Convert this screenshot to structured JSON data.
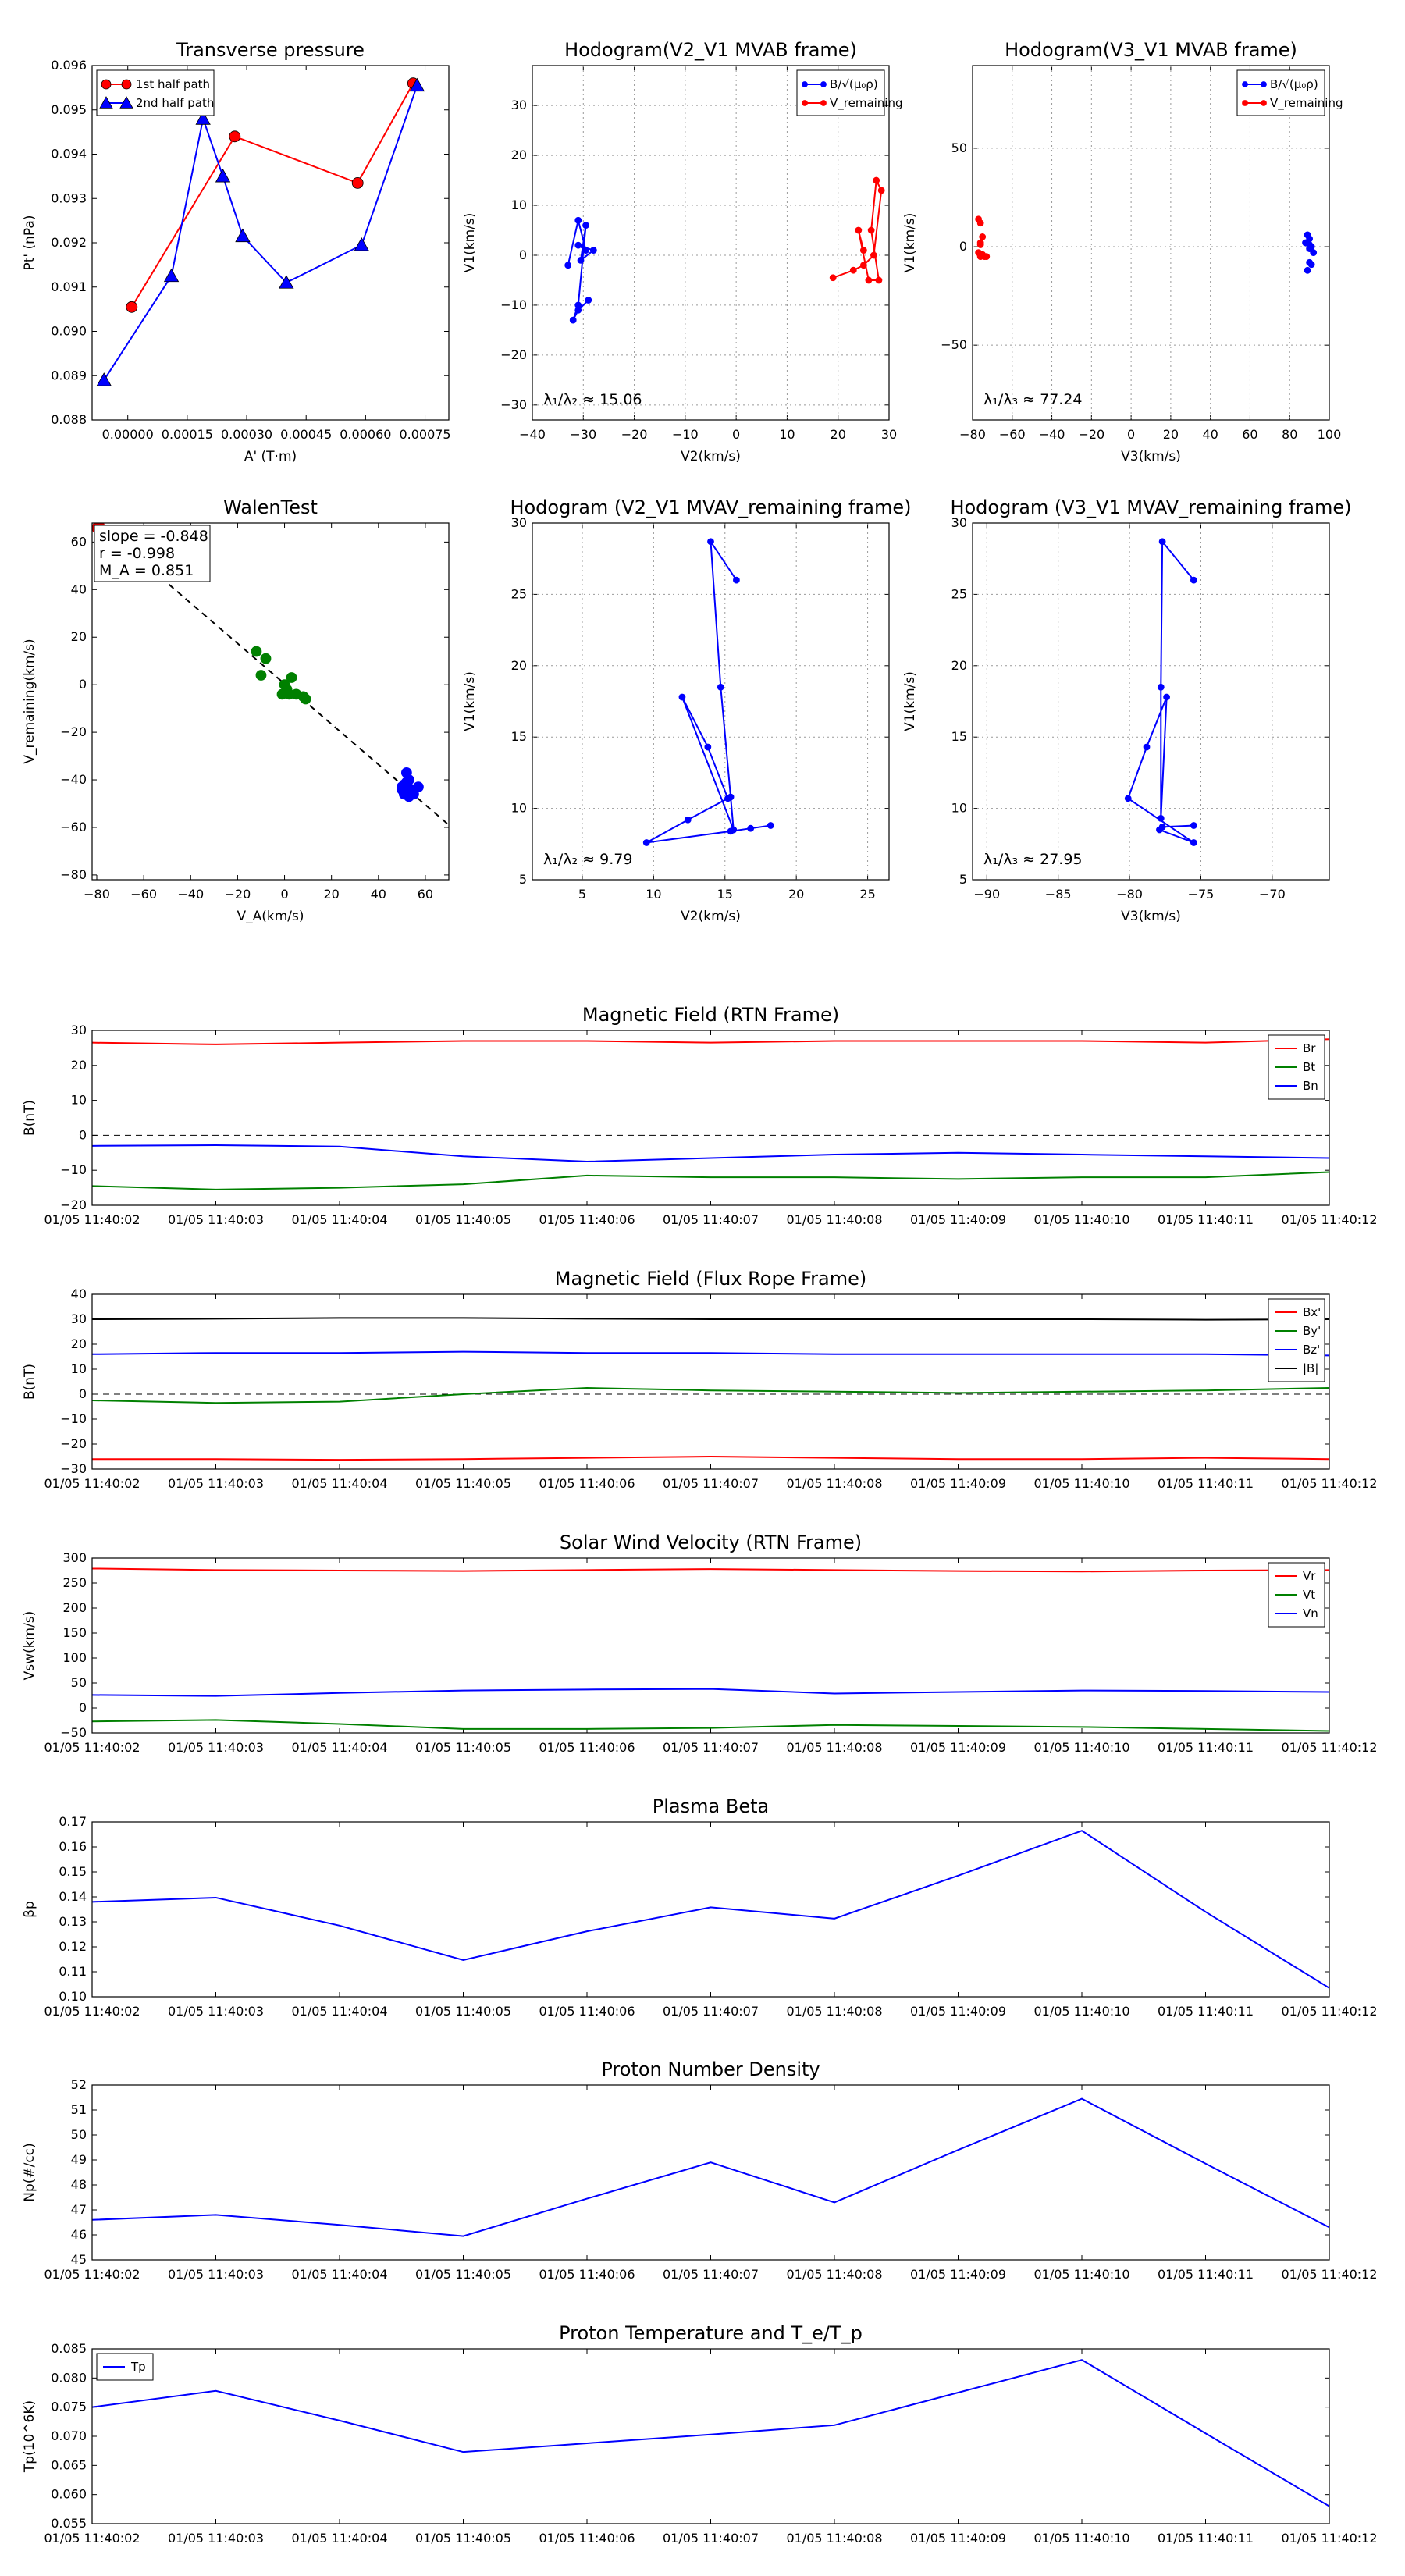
{
  "chart_data": [
    {
      "id": "transverse-pressure",
      "type": "line",
      "title": "Transverse pressure",
      "xlabel": "A' (T·m)",
      "ylabel": "Pt' (nPa)",
      "xlim": [
        -9e-05,
        0.00081
      ],
      "ylim": [
        0.088,
        0.096
      ],
      "xticks": [
        0.0,
        0.00015,
        0.0003,
        0.00045,
        0.0006,
        0.00075
      ],
      "xtick_labels": [
        "0.00000",
        "0.00015",
        "0.00030",
        "0.00045",
        "0.00060",
        "0.00075"
      ],
      "yticks": [
        0.088,
        0.089,
        0.09,
        0.091,
        0.092,
        0.093,
        0.094,
        0.095,
        0.096
      ],
      "ytick_labels": [
        "0.088",
        "0.089",
        "0.090",
        "0.091",
        "0.092",
        "0.093",
        "0.094",
        "0.095",
        "0.096"
      ],
      "legend": "top-left",
      "series": [
        {
          "name": "1st half path",
          "color": "#ff0000",
          "marker": "circle",
          "x": [
            1e-05,
            0.00027,
            0.00058,
            0.00072
          ],
          "y": [
            0.09055,
            0.0944,
            0.09335,
            0.0956
          ]
        },
        {
          "name": "2nd half path",
          "color": "#0000ff",
          "marker": "triangle",
          "x": [
            -6e-05,
            0.00011,
            0.00019,
            0.00024,
            0.00029,
            0.0004,
            0.00059,
            0.00073
          ],
          "y": [
            0.0889,
            0.09125,
            0.0948,
            0.0935,
            0.09215,
            0.0911,
            0.09195,
            0.09555
          ]
        }
      ]
    },
    {
      "id": "hodogram-v2-v1-mvab",
      "type": "line",
      "title": "Hodogram(V2_V1 MVAB frame)",
      "xlabel": "V2(km/s)",
      "ylabel": "V1(km/s)",
      "xlim": [
        -40,
        30
      ],
      "ylim": [
        -33,
        38
      ],
      "xticks": [
        -40,
        -30,
        -20,
        -10,
        0,
        10,
        20,
        30
      ],
      "xtick_labels": [
        "−40",
        "−30",
        "−20",
        "−10",
        "0",
        "10",
        "20",
        "30"
      ],
      "yticks": [
        -30,
        -20,
        -10,
        0,
        10,
        20,
        30
      ],
      "ytick_labels": [
        "−30",
        "−20",
        "−10",
        "0",
        "10",
        "20",
        "30"
      ],
      "grid": true,
      "legend": "top-right",
      "annotation": "λ₁/λ₂ ≈ 15.06",
      "series": [
        {
          "name": "B/√(μ₀ρ)",
          "color": "#0000ff",
          "x": [
            -33,
            -31,
            -29.5,
            -31,
            -28,
            -30.5,
            -29.5,
            -31,
            -32,
            -31,
            -29
          ],
          "y": [
            -2,
            7,
            1,
            2,
            1,
            -1,
            6,
            -10,
            -13,
            -11,
            -9
          ]
        },
        {
          "name": "V_remaining",
          "color": "#ff0000",
          "x": [
            19,
            23,
            25,
            27,
            28.5,
            27.5,
            26.5,
            28,
            26,
            24,
            25
          ],
          "y": [
            -4.5,
            -3,
            -2,
            0,
            13,
            15,
            5,
            -5,
            -5,
            5,
            1
          ]
        }
      ]
    },
    {
      "id": "hodogram-v3-v1-mvab",
      "type": "scatter",
      "title": "Hodogram(V3_V1 MVAB frame)",
      "xlabel": "V3(km/s)",
      "ylabel": "V1(km/s)",
      "xlim": [
        -80,
        100
      ],
      "ylim": [
        -88,
        92
      ],
      "xticks": [
        -80,
        -60,
        -40,
        -20,
        0,
        20,
        40,
        60,
        80,
        100
      ],
      "xtick_labels": [
        "−80",
        "−60",
        "−40",
        "−20",
        "0",
        "20",
        "40",
        "60",
        "80",
        "100"
      ],
      "yticks": [
        -50,
        0,
        50
      ],
      "ytick_labels": [
        "−50",
        "0",
        "50"
      ],
      "grid": true,
      "legend": "top-right",
      "annotation": "λ₁/λ₃ ≈ 77.24",
      "series": [
        {
          "name": "B/√(μ₀ρ)",
          "color": "#0000ff",
          "x": [
            88,
            89,
            90,
            91,
            90,
            92,
            90,
            89,
            91,
            90
          ],
          "y": [
            2,
            6,
            4,
            0,
            -1,
            -3,
            -8,
            -12,
            -9,
            1
          ]
        },
        {
          "name": "V_remaining",
          "color": "#ff0000",
          "x": [
            -77,
            -76,
            -75,
            -76,
            -77,
            -76,
            -75,
            -74,
            -73,
            -76
          ],
          "y": [
            14,
            12,
            5,
            1,
            -3,
            -5,
            -4,
            -5,
            -5,
            2
          ]
        }
      ]
    },
    {
      "id": "walen-test",
      "type": "scatter",
      "title": "WalenTest",
      "xlabel": "V_A(km/s)",
      "ylabel": "V_remaining(km/s)",
      "xlim": [
        -82,
        70
      ],
      "ylim": [
        -82,
        68
      ],
      "xticks": [
        -80,
        -60,
        -40,
        -20,
        0,
        20,
        40,
        60
      ],
      "xtick_labels": [
        "−80",
        "−60",
        "−40",
        "−20",
        "0",
        "20",
        "40",
        "60"
      ],
      "yticks": [
        -80,
        -60,
        -40,
        -20,
        0,
        20,
        40,
        60
      ],
      "ytick_labels": [
        "−80",
        "−60",
        "−40",
        "−20",
        "0",
        "20",
        "40",
        "60"
      ],
      "fit_line": {
        "slope": -0.848,
        "intercept": 0.4,
        "color": "#000000",
        "style": "dashed"
      },
      "stats": [
        "slope = -0.848",
        "r = -0.998",
        "M_A = 0.851"
      ],
      "series": [
        {
          "name": "red",
          "color": "#cc0000",
          "x": [
            -80,
            -79
          ],
          "y": [
            66,
            67
          ]
        },
        {
          "name": "green",
          "color": "#008000",
          "x": [
            -12,
            -8,
            -10,
            0,
            2,
            5,
            3,
            8,
            -1,
            1,
            9
          ],
          "y": [
            14,
            11,
            4,
            0,
            -4,
            -4,
            3,
            -5,
            -4,
            -2,
            -6
          ]
        },
        {
          "name": "blue",
          "color": "#0000ff",
          "x": [
            50,
            52,
            54,
            51,
            53,
            55,
            52,
            57,
            50,
            54,
            53,
            52,
            51
          ],
          "y": [
            -43,
            -45,
            -44,
            -42,
            -40,
            -46,
            -37,
            -43,
            -44,
            -45,
            -47,
            -41,
            -46
          ]
        }
      ]
    },
    {
      "id": "hodogram-v2-v1-mvav",
      "type": "line",
      "title": "Hodogram (V2_V1 MVAV_remaining frame)",
      "xlabel": "V2(km/s)",
      "ylabel": "V1(km/s)",
      "xlim": [
        1.5,
        26.5
      ],
      "ylim": [
        5,
        30
      ],
      "xticks": [
        5,
        10,
        15,
        20,
        25
      ],
      "xtick_labels": [
        "5",
        "10",
        "15",
        "20",
        "25"
      ],
      "yticks": [
        5,
        10,
        15,
        20,
        25,
        30
      ],
      "ytick_labels": [
        "5",
        "10",
        "15",
        "20",
        "25",
        "30"
      ],
      "grid": true,
      "annotation": "λ₁/λ₂ ≈ 9.79",
      "series": [
        {
          "name": "V",
          "color": "#0000ff",
          "x": [
            15.8,
            14,
            14.7,
            15.4,
            15.6,
            12,
            13.8,
            15.2,
            12.4,
            9.5,
            15.4,
            16.8,
            18.2
          ],
          "y": [
            26,
            28.7,
            18.5,
            10.8,
            8.5,
            17.8,
            14.3,
            10.7,
            9.2,
            7.6,
            8.4,
            8.6,
            8.8
          ]
        }
      ]
    },
    {
      "id": "hodogram-v3-v1-mvav",
      "type": "line",
      "title": "Hodogram (V3_V1 MVAV_remaining frame)",
      "xlabel": "V3(km/s)",
      "ylabel": "V1(km/s)",
      "xlim": [
        -91,
        -66
      ],
      "ylim": [
        5,
        30
      ],
      "xticks": [
        -90,
        -85,
        -80,
        -75,
        -70
      ],
      "xtick_labels": [
        "−90",
        "−85",
        "−80",
        "−75",
        "−70"
      ],
      "yticks": [
        5,
        10,
        15,
        20,
        25,
        30
      ],
      "ytick_labels": [
        "5",
        "10",
        "15",
        "20",
        "25",
        "30"
      ],
      "grid": true,
      "annotation": "λ₁/λ₃ ≈ 27.95",
      "series": [
        {
          "name": "V",
          "color": "#0000ff",
          "x": [
            -75.5,
            -77.7,
            -77.8,
            -77.8,
            -77.4,
            -78.8,
            -80.1,
            -75.5,
            -77.9,
            -77.7,
            -75.5
          ],
          "y": [
            26,
            28.7,
            18.5,
            9.3,
            17.8,
            14.3,
            10.7,
            7.6,
            8.5,
            8.7,
            8.8
          ]
        }
      ]
    },
    {
      "id": "magnetic-field-rtn",
      "type": "line",
      "title": "Magnetic Field (RTN Frame)",
      "ylabel": "B(nT)",
      "ylim": [
        -20,
        30
      ],
      "yticks": [
        -20,
        -10,
        0,
        10,
        20,
        30
      ],
      "ytick_labels": [
        "−20",
        "−10",
        "0",
        "10",
        "20",
        "30"
      ],
      "zero_line": true,
      "legend": "top-right",
      "series": [
        {
          "name": "Br",
          "color": "#ff0000",
          "values": [
            26.5,
            26,
            26.5,
            27,
            27,
            26.5,
            27,
            27,
            27,
            26.5,
            27.5
          ]
        },
        {
          "name": "Bt",
          "color": "#008000",
          "values": [
            -14.5,
            -15.5,
            -15,
            -14,
            -11.5,
            -12,
            -12,
            -12.5,
            -12,
            -12,
            -10.5
          ]
        },
        {
          "name": "Bn",
          "color": "#0000ff",
          "values": [
            -3,
            -2.8,
            -3.2,
            -6,
            -7.5,
            -6.5,
            -5.5,
            -5,
            -5.5,
            -6,
            -6.5
          ]
        }
      ]
    },
    {
      "id": "magnetic-field-flux-rope",
      "type": "line",
      "title": "Magnetic Field (Flux Rope Frame)",
      "ylabel": "B(nT)",
      "ylim": [
        -30,
        40
      ],
      "yticks": [
        -30,
        -20,
        -10,
        0,
        10,
        20,
        30,
        40
      ],
      "ytick_labels": [
        "−30",
        "−20",
        "−10",
        "0",
        "10",
        "20",
        "30",
        "40"
      ],
      "zero_line": true,
      "legend": "top-right",
      "series": [
        {
          "name": "Bx'",
          "color": "#ff0000",
          "values": [
            -26,
            -26,
            -26.3,
            -26,
            -25.5,
            -25,
            -25.5,
            -26,
            -26,
            -25.5,
            -26
          ]
        },
        {
          "name": "By'",
          "color": "#008000",
          "values": [
            -2.5,
            -3.5,
            -3,
            0,
            2.5,
            1.5,
            1,
            0.5,
            1,
            1.5,
            2.5
          ]
        },
        {
          "name": "Bz'",
          "color": "#0000ff",
          "values": [
            16,
            16.5,
            16.5,
            17,
            16.5,
            16.5,
            16,
            16,
            16,
            16,
            15.5
          ]
        },
        {
          "name": "|B|",
          "color": "#000000",
          "values": [
            30,
            30.2,
            30.5,
            30.5,
            30.2,
            30,
            30,
            30,
            30,
            29.8,
            30
          ]
        }
      ]
    },
    {
      "id": "solar-wind-velocity",
      "type": "line",
      "title": "Solar Wind Velocity (RTN Frame)",
      "ylabel": "Vsw(km/s)",
      "ylim": [
        -50,
        300
      ],
      "yticks": [
        -50,
        0,
        50,
        100,
        150,
        200,
        250,
        300
      ],
      "ytick_labels": [
        "−50",
        "0",
        "50",
        "100",
        "150",
        "200",
        "250",
        "300"
      ],
      "legend": "top-right",
      "series": [
        {
          "name": "Vr",
          "color": "#ff0000",
          "values": [
            279,
            276,
            275,
            274,
            276,
            278,
            276,
            274,
            273,
            275,
            276
          ]
        },
        {
          "name": "Vt",
          "color": "#008000",
          "values": [
            -27,
            -24,
            -32,
            -42,
            -42,
            -40,
            -34,
            -36,
            -38,
            -42,
            -46
          ]
        },
        {
          "name": "Vn",
          "color": "#0000ff",
          "values": [
            26,
            24,
            30,
            35,
            37,
            38,
            29,
            32,
            35,
            34,
            32
          ]
        }
      ]
    },
    {
      "id": "plasma-beta",
      "type": "line",
      "title": "Plasma Beta",
      "ylabel": "βp",
      "ylim": [
        0.1,
        0.17
      ],
      "yticks": [
        0.1,
        0.11,
        0.12,
        0.13,
        0.14,
        0.15,
        0.16,
        0.17
      ],
      "ytick_labels": [
        "0.10",
        "0.11",
        "0.12",
        "0.13",
        "0.14",
        "0.15",
        "0.16",
        "0.17"
      ],
      "series": [
        {
          "name": "βp",
          "color": "#0000ff",
          "values": [
            0.138,
            0.1397,
            0.1285,
            0.1147,
            0.1262,
            0.1358,
            0.1313,
            0.1485,
            0.1665,
            0.134,
            0.1035
          ]
        }
      ]
    },
    {
      "id": "proton-number-density",
      "type": "line",
      "title": "Proton Number Density",
      "ylabel": "Np(#/cc)",
      "ylim": [
        45,
        52
      ],
      "yticks": [
        45,
        46,
        47,
        48,
        49,
        50,
        51,
        52
      ],
      "ytick_labels": [
        "45",
        "46",
        "47",
        "48",
        "49",
        "50",
        "51",
        "52"
      ],
      "series": [
        {
          "name": "Np",
          "color": "#0000ff",
          "values": [
            46.6,
            46.8,
            46.4,
            45.95,
            47.45,
            48.9,
            47.3,
            49.4,
            51.45,
            48.85,
            46.3
          ]
        }
      ]
    },
    {
      "id": "proton-temperature",
      "type": "line",
      "title": "Proton Temperature and T_e/T_p",
      "ylabel": "Tp(10^6K)",
      "ylim": [
        0.055,
        0.085
      ],
      "yticks": [
        0.055,
        0.06,
        0.065,
        0.07,
        0.075,
        0.08,
        0.085
      ],
      "ytick_labels": [
        "0.055",
        "0.060",
        "0.065",
        "0.070",
        "0.075",
        "0.080",
        "0.085"
      ],
      "legend": "top-left",
      "series": [
        {
          "name": "Tp",
          "color": "#0000ff",
          "values": [
            0.075,
            0.0778,
            0.0727,
            0.0673,
            0.0688,
            0.0703,
            0.0719,
            0.0775,
            0.0831,
            0.0705,
            0.058
          ]
        }
      ]
    }
  ],
  "time_axis_labels": [
    "01/05 11:40:02",
    "01/05 11:40:03",
    "01/05 11:40:04",
    "01/05 11:40:05",
    "01/05 11:40:06",
    "01/05 11:40:07",
    "01/05 11:40:08",
    "01/05 11:40:09",
    "01/05 11:40:10",
    "01/05 11:40:11",
    "01/05 11:40:12"
  ]
}
